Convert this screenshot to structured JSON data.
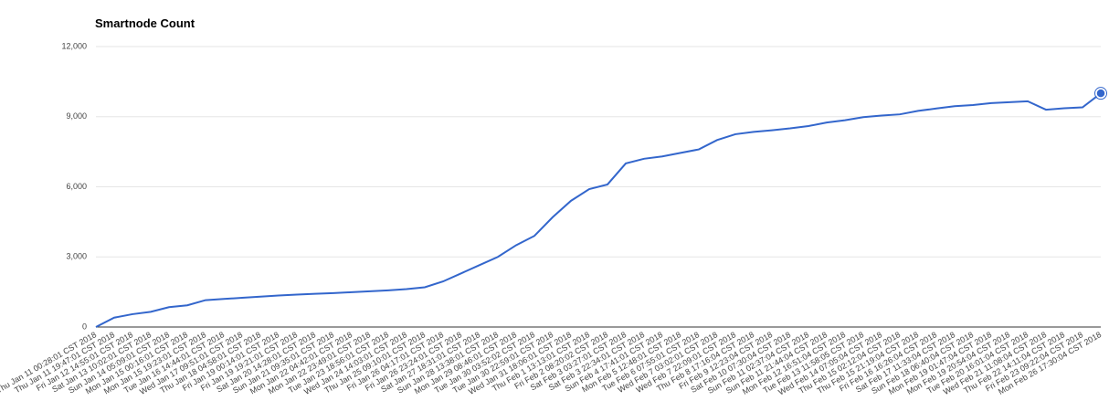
{
  "chart_data": {
    "type": "line",
    "title": "Smartnode Count",
    "categories": [
      "Thu Jan 11 00:28:01 CST 2018",
      "Thu Jan 11 19:47:01 CST 2018",
      "Fri Jan 12 14:55:01 CST 2018",
      "Sat Jan 13 10:02:01 CST 2018",
      "Sun Jan 14 05:09:01 CST 2018",
      "Mon Jan 15 00:16:01 CST 2018",
      "Mon Jan 15 19:23:01 CST 2018",
      "Tue Jan 16 14:44:01 CST 2018",
      "Wed Jan 17 09:51:01 CST 2018",
      "Thu Jan 18 04:58:01 CST 2018",
      "Fri Jan 19 00:14:01 CST 2018",
      "Fri Jan 19 19:21:01 CST 2018",
      "Sat Jan 20 14:28:01 CST 2018",
      "Sun Jan 21 09:35:01 CST 2018",
      "Mon Jan 22 04:42:01 CST 2018",
      "Mon Jan 22 23:49:01 CST 2018",
      "Tue Jan 23 18:56:01 CST 2018",
      "Wed Jan 24 14:03:01 CST 2018",
      "Thu Jan 25 09:10:01 CST 2018",
      "Fri Jan 26 04:17:01 CST 2018",
      "Fri Jan 26 23:24:01 CST 2018",
      "Sat Jan 27 18:31:01 CST 2018",
      "Sun Jan 28 13:38:01 CST 2018",
      "Mon Jan 29 08:46:01 CST 2018",
      "Tue Jan 30 03:52:02 CST 2018",
      "Tue Jan 30 22:59:01 CST 2018",
      "Wed Jan 31 18:06:01 CST 2018",
      "Thu Feb 1 13:13:01 CST 2018",
      "Fri Feb 2 08:20:02 CST 2018",
      "Sat Feb 3 03:27:01 CST 2018",
      "Sat Feb 3 22:34:01 CST 2018",
      "Sun Feb 4 17:41:01 CST 2018",
      "Mon Feb 5 12:48:01 CST 2018",
      "Tue Feb 6 07:55:01 CST 2018",
      "Wed Feb 7 03:02:01 CST 2018",
      "Wed Feb 7 22:09:01 CST 2018",
      "Thu Feb 8 17:16:04 CST 2018",
      "Fri Feb 9 12:23:04 CST 2018",
      "Sat Feb 10 07:30:04 CST 2018",
      "Sun Feb 11 02:37:04 CST 2018",
      "Sun Feb 11 21:44:04 CST 2018",
      "Mon Feb 12 16:51:04 CST 2018",
      "Tue Feb 13 11:58:05 CST 2018",
      "Wed Feb 14 07:05:04 CST 2018",
      "Thu Feb 15 02:12:04 CST 2018",
      "Thu Feb 15 21:19:04 CST 2018",
      "Fri Feb 16 16:26:04 CST 2018",
      "Sat Feb 17 11:33:04 CST 2018",
      "Sun Feb 18 06:40:04 CST 2018",
      "Mon Feb 19 01:47:04 CST 2018",
      "Mon Feb 19 20:54:04 CST 2018",
      "Tue Feb 20 16:01:04 CST 2018",
      "Wed Feb 21 11:08:04 CST 2018",
      "Thu Feb 22 14:11:04 CST 2018",
      "Fri Feb 23 09:22:04 CST 2018",
      "Mon Feb 26 17:30:04 CST 2018"
    ],
    "series": [
      {
        "color": "#3366cc",
        "values": [
          0,
          400,
          550,
          650,
          850,
          930,
          1150,
          1200,
          1250,
          1300,
          1350,
          1390,
          1420,
          1450,
          1490,
          1530,
          1570,
          1620,
          1700,
          1950,
          2300,
          2650,
          3000,
          3500,
          3900,
          4700,
          5400,
          5900,
          6100,
          7000,
          7200,
          7300,
          7450,
          7600,
          8000,
          8250,
          8350,
          8420,
          8500,
          8600,
          8750,
          8850,
          8980,
          9050,
          9100,
          9250,
          9350,
          9450,
          9500,
          9580,
          9620,
          9660,
          9300,
          9360,
          9400,
          10000
        ]
      }
    ],
    "ylim": [
      0,
      12000
    ],
    "yticks": [
      0,
      {
        "value": 3000,
        "label": "3,000"
      },
      {
        "value": 6000,
        "label": "6,000"
      },
      {
        "value": 9000,
        "label": "9,000"
      },
      {
        "value": 12000,
        "label": "12,000"
      }
    ],
    "grid": true
  }
}
